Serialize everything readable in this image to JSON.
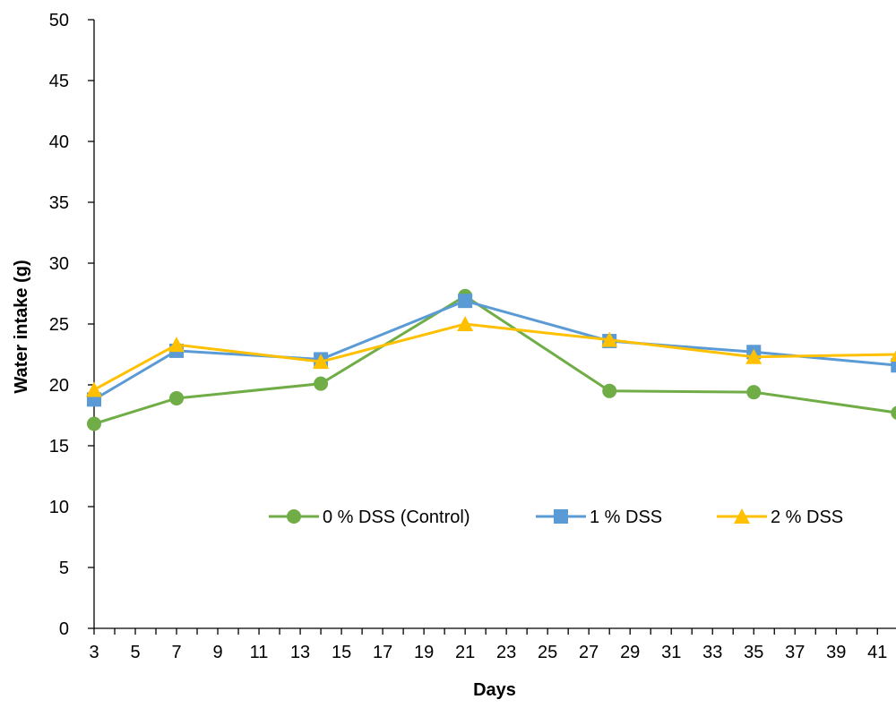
{
  "chart_data": {
    "type": "line",
    "title": "",
    "xlabel": "Days",
    "ylabel": "Water intake (g)",
    "xlim": [
      3,
      42
    ],
    "ylim": [
      0,
      50
    ],
    "x_ticks": [
      3,
      5,
      7,
      9,
      11,
      13,
      15,
      17,
      19,
      21,
      23,
      25,
      27,
      29,
      31,
      33,
      35,
      37,
      39,
      41
    ],
    "y_ticks": [
      0,
      5,
      10,
      15,
      20,
      25,
      30,
      35,
      40,
      45,
      50
    ],
    "grid": false,
    "legend_position": "lower-center",
    "series": [
      {
        "name": "0 % DSS (Control)",
        "color": "#70AD47",
        "marker": "circle",
        "points": [
          [
            3,
            16.8
          ],
          [
            7,
            18.9
          ],
          [
            14,
            20.1
          ],
          [
            21,
            27.3
          ],
          [
            28,
            19.5
          ],
          [
            35,
            19.4
          ],
          [
            42,
            17.7
          ]
        ]
      },
      {
        "name": "1 % DSS",
        "color": "#5B9BD5",
        "marker": "square",
        "points": [
          [
            3,
            18.8
          ],
          [
            7,
            22.8
          ],
          [
            14,
            22.1
          ],
          [
            21,
            26.9
          ],
          [
            28,
            23.6
          ],
          [
            35,
            22.7
          ],
          [
            42,
            21.6
          ]
        ]
      },
      {
        "name": "2 % DSS",
        "color": "#FFC000",
        "marker": "triangle",
        "points": [
          [
            3,
            19.6
          ],
          [
            7,
            23.3
          ],
          [
            14,
            21.9
          ],
          [
            21,
            25.0
          ],
          [
            28,
            23.7
          ],
          [
            35,
            22.3
          ],
          [
            42,
            22.5
          ]
        ]
      }
    ]
  }
}
